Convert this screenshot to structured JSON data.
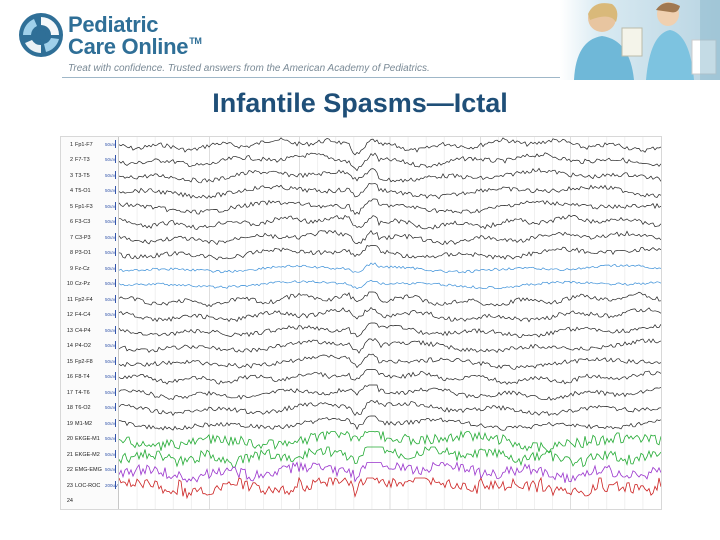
{
  "brand": {
    "line1": "Pediatric",
    "line2": "Care Online",
    "trademark": "TM",
    "tagline": "Treat with confidence. Trusted answers from the American Academy of Pediatrics.",
    "color": "#2f6f97"
  },
  "slide": {
    "title": "Infantile Spasms—Ictal",
    "title_color": "#1f4f78"
  },
  "eeg": {
    "channels": [
      {
        "num": "1",
        "name": "Fp1-F7",
        "scale": "50uV",
        "color": "#222222"
      },
      {
        "num": "2",
        "name": "F7-T3",
        "scale": "50uV",
        "color": "#222222"
      },
      {
        "num": "3",
        "name": "T3-T5",
        "scale": "50uV",
        "color": "#222222"
      },
      {
        "num": "4",
        "name": "T5-O1",
        "scale": "50uV",
        "color": "#222222"
      },
      {
        "num": "5",
        "name": "Fp1-F3",
        "scale": "50uV",
        "color": "#222222"
      },
      {
        "num": "6",
        "name": "F3-C3",
        "scale": "50uV",
        "color": "#222222"
      },
      {
        "num": "7",
        "name": "C3-P3",
        "scale": "50uV",
        "color": "#222222"
      },
      {
        "num": "8",
        "name": "P3-O1",
        "scale": "50uV",
        "color": "#222222"
      },
      {
        "num": "9",
        "name": "Fz-Cz",
        "scale": "50uV",
        "color": "#3a8fd8"
      },
      {
        "num": "10",
        "name": "Cz-Pz",
        "scale": "50uV",
        "color": "#3a8fd8"
      },
      {
        "num": "11",
        "name": "Fp2-F4",
        "scale": "50uV",
        "color": "#222222"
      },
      {
        "num": "12",
        "name": "F4-C4",
        "scale": "50uV",
        "color": "#222222"
      },
      {
        "num": "13",
        "name": "C4-P4",
        "scale": "50uV",
        "color": "#222222"
      },
      {
        "num": "14",
        "name": "P4-O2",
        "scale": "50uV",
        "color": "#222222"
      },
      {
        "num": "15",
        "name": "Fp2-F8",
        "scale": "50uV",
        "color": "#222222"
      },
      {
        "num": "16",
        "name": "F8-T4",
        "scale": "50uV",
        "color": "#222222"
      },
      {
        "num": "17",
        "name": "T4-T6",
        "scale": "50uV",
        "color": "#222222"
      },
      {
        "num": "18",
        "name": "T6-O2",
        "scale": "50uV",
        "color": "#222222"
      },
      {
        "num": "19",
        "name": "M1-M2",
        "scale": "50uV",
        "color": "#222222"
      },
      {
        "num": "20",
        "name": "EKGE-M1",
        "scale": "50uV",
        "color": "#22aa33"
      },
      {
        "num": "21",
        "name": "EKGE-M2",
        "scale": "50uV",
        "color": "#22aa33"
      },
      {
        "num": "22",
        "name": "EMG-EMG",
        "scale": "50uV",
        "color": "#9933cc"
      },
      {
        "num": "23",
        "name": "LOC-ROC",
        "scale": "200uV",
        "color": "#cc2222"
      },
      {
        "num": "24",
        "name": "",
        "scale": "",
        "color": "#222222"
      }
    ]
  }
}
